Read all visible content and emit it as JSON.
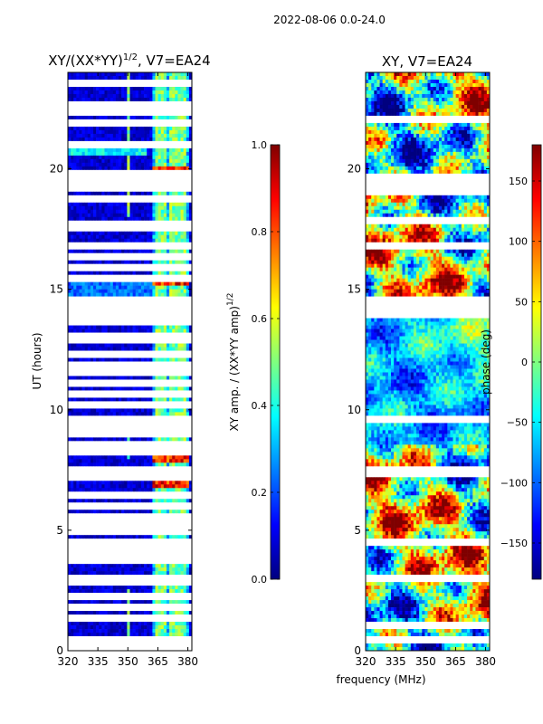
{
  "suptitle": "2022-08-06 0.0-24.0",
  "colors": {
    "jet": [
      "#00007f",
      "#0000ff",
      "#007fff",
      "#00ffff",
      "#7fff7f",
      "#ffff00",
      "#ff7f00",
      "#ff0000",
      "#7f0000"
    ],
    "gap": "#ffffff",
    "frame": "#000000"
  },
  "chart_data": [
    {
      "type": "heatmap",
      "title": "XY/(XX*YY)",
      "title_sup": "1/2",
      "title_suffix": ", V7=EA24",
      "xlabel": "",
      "ylabel": "UT (hours)",
      "xlim": [
        320,
        382
      ],
      "ylim": [
        0,
        24
      ],
      "xticks": [
        320,
        335,
        350,
        365,
        380
      ],
      "yticks": [
        0,
        5,
        10,
        15,
        20
      ],
      "gap_rows_hours": [
        0.2,
        0.45,
        1.4,
        1.75,
        2.2,
        2.9,
        3.05,
        3.8,
        4.1,
        4.3,
        4.5,
        5.0,
        5.25,
        5.6,
        6.05,
        6.4,
        7.2,
        7.35,
        7.5,
        8.25,
        8.5,
        9.0,
        9.3,
        9.6,
        10.2,
        10.6,
        11.1,
        11.5,
        11.9,
        12.35,
        12.85,
        13.1,
        13.6,
        13.8,
        14.1,
        14.3,
        14.5,
        15.5,
        15.9,
        16.35,
        16.8,
        17.5,
        17.75,
        18.8,
        19.2,
        19.5,
        19.8,
        21.0,
        21.9,
        22.3,
        22.7,
        23.5
      ],
      "bright_channel_bands_mhz": [
        [
          349,
          351
        ],
        [
          363,
          366
        ],
        [
          367,
          369
        ],
        [
          371,
          373
        ],
        [
          374,
          376
        ],
        [
          377,
          379
        ]
      ],
      "hot_hours": [
        [
          6.8,
          7.2
        ],
        [
          7.8,
          8.1
        ],
        [
          15.1,
          15.6
        ],
        [
          19.95,
          20.1
        ]
      ]
    },
    {
      "type": "colorbar",
      "label": "XY amp. / (XX*YY amp)",
      "label_sup": "1/2",
      "range": [
        0.0,
        1.0
      ],
      "ticks": [
        "0.0",
        "0.2",
        "0.4",
        "0.6",
        "0.8",
        "1.0"
      ],
      "tick_values": [
        0.0,
        0.2,
        0.4,
        0.6,
        0.8,
        1.0
      ]
    },
    {
      "type": "heatmap",
      "title": "XY, V7=EA24",
      "xlabel": "frequency (MHz)",
      "ylabel": "",
      "xlim": [
        320,
        382
      ],
      "ylim": [
        0,
        24
      ],
      "xticks": [
        320,
        335,
        350,
        365,
        380
      ],
      "yticks": [
        0,
        5,
        10,
        15,
        20
      ],
      "gap_rows_hours": [
        0.5,
        1.1,
        3.0,
        4.5,
        7.4,
        7.5,
        9.6,
        13.9,
        14.2,
        14.4,
        14.6,
        16.8,
        17.9,
        19.0,
        19.3,
        19.6,
        22.1
      ]
    },
    {
      "type": "colorbar",
      "label": "phase (deg)",
      "range": [
        -180,
        180
      ],
      "ticks": [
        "−150",
        "−100",
        "−50",
        "0",
        "50",
        "100",
        "150"
      ],
      "tick_values": [
        -150,
        -100,
        -50,
        0,
        50,
        100,
        150
      ]
    }
  ]
}
